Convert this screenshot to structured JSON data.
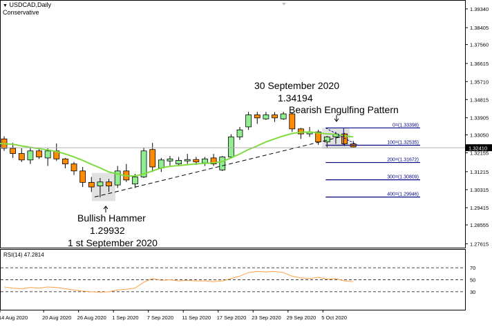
{
  "header": {
    "symbol": "USDCAD,Daily",
    "mode": "Conservative"
  },
  "price_axis_ticks": [
    "1.39340",
    "1.38405",
    "1.37560",
    "1.36615",
    "1.35710",
    "1.34815",
    "1.33905",
    "1.33050",
    "1.32155",
    "1.31215",
    "1.30315",
    "1.29415",
    "1.28555",
    "1.27615"
  ],
  "current_price": "1.32410",
  "x_labels": [
    "14 Aug 2020",
    "20 Aug 2020",
    "26 Aug 2020",
    "1 Sep 2020",
    "7 Sep 2020",
    "11 Sep 2020",
    "17 Sep 2020",
    "23 Sep 2020",
    "29 Sep 2020",
    "5 Oct 2020"
  ],
  "annotations": {
    "top_line1": "30 September 2020",
    "top_line2": "1.34194",
    "top_line3": "Bearish Engulfing Pattern",
    "bottom_line1": "Bullish Hammer",
    "bottom_line2": "1.29932",
    "bottom_line3": "1 st September 2020"
  },
  "fib_labels": [
    "0=(1.33398)",
    "100=(1.32535)",
    "200=(1.31672)",
    "300=(1.30809)",
    "400=(1.29946)"
  ],
  "rsi": {
    "label": "RSI(14) 47.2814",
    "levels": [
      "70",
      "50",
      "30"
    ]
  },
  "colors": {
    "bull": "#90ee90",
    "bear": "#ff8c00",
    "ma": "#7fdc3c",
    "rsi": "#ffa040",
    "fib": "#000080",
    "highlight": "#c8c8c8"
  },
  "chart_data": {
    "type": "candlestick",
    "price_range": [
      1.2742,
      1.3975
    ],
    "candles": [
      {
        "o": 1.3285,
        "h": 1.3298,
        "l": 1.3225,
        "c": 1.3238
      },
      {
        "o": 1.3238,
        "h": 1.3265,
        "l": 1.319,
        "c": 1.3212
      },
      {
        "o": 1.3212,
        "h": 1.3238,
        "l": 1.317,
        "c": 1.318
      },
      {
        "o": 1.318,
        "h": 1.3245,
        "l": 1.316,
        "c": 1.3225
      },
      {
        "o": 1.3225,
        "h": 1.324,
        "l": 1.3185,
        "c": 1.3195
      },
      {
        "o": 1.319,
        "h": 1.3238,
        "l": 1.315,
        "c": 1.3225
      },
      {
        "o": 1.3225,
        "h": 1.3262,
        "l": 1.3175,
        "c": 1.3185
      },
      {
        "o": 1.3185,
        "h": 1.319,
        "l": 1.3138,
        "c": 1.316
      },
      {
        "o": 1.316,
        "h": 1.317,
        "l": 1.3105,
        "c": 1.3125
      },
      {
        "o": 1.3125,
        "h": 1.3145,
        "l": 1.3045,
        "c": 1.3068
      },
      {
        "o": 1.3068,
        "h": 1.3095,
        "l": 1.302,
        "c": 1.3045
      },
      {
        "o": 1.305,
        "h": 1.309,
        "l": 1.2993,
        "c": 1.307
      },
      {
        "o": 1.307,
        "h": 1.3085,
        "l": 1.302,
        "c": 1.305
      },
      {
        "o": 1.3055,
        "h": 1.315,
        "l": 1.304,
        "c": 1.3125
      },
      {
        "o": 1.3125,
        "h": 1.316,
        "l": 1.307,
        "c": 1.308
      },
      {
        "o": 1.306,
        "h": 1.311,
        "l": 1.304,
        "c": 1.3095
      },
      {
        "o": 1.3095,
        "h": 1.324,
        "l": 1.309,
        "c": 1.3225
      },
      {
        "o": 1.3232,
        "h": 1.3265,
        "l": 1.312,
        "c": 1.3145
      },
      {
        "o": 1.314,
        "h": 1.319,
        "l": 1.312,
        "c": 1.318
      },
      {
        "o": 1.3175,
        "h": 1.32,
        "l": 1.315,
        "c": 1.3185
      },
      {
        "o": 1.316,
        "h": 1.3195,
        "l": 1.315,
        "c": 1.3178
      },
      {
        "o": 1.3175,
        "h": 1.321,
        "l": 1.316,
        "c": 1.3182
      },
      {
        "o": 1.3182,
        "h": 1.3195,
        "l": 1.3155,
        "c": 1.317
      },
      {
        "o": 1.3165,
        "h": 1.3195,
        "l": 1.315,
        "c": 1.3185
      },
      {
        "o": 1.319,
        "h": 1.321,
        "l": 1.315,
        "c": 1.316
      },
      {
        "o": 1.313,
        "h": 1.32,
        "l": 1.3125,
        "c": 1.3195
      },
      {
        "o": 1.3195,
        "h": 1.3308,
        "l": 1.319,
        "c": 1.3295
      },
      {
        "o": 1.3295,
        "h": 1.3345,
        "l": 1.328,
        "c": 1.333
      },
      {
        "o": 1.3345,
        "h": 1.342,
        "l": 1.333,
        "c": 1.3405
      },
      {
        "o": 1.3405,
        "h": 1.342,
        "l": 1.336,
        "c": 1.339
      },
      {
        "o": 1.3385,
        "h": 1.342,
        "l": 1.338,
        "c": 1.3405
      },
      {
        "o": 1.3405,
        "h": 1.3419,
        "l": 1.337,
        "c": 1.339
      },
      {
        "o": 1.3385,
        "h": 1.342,
        "l": 1.338,
        "c": 1.341
      },
      {
        "o": 1.341,
        "h": 1.3419,
        "l": 1.332,
        "c": 1.3335
      },
      {
        "o": 1.3335,
        "h": 1.334,
        "l": 1.3285,
        "c": 1.331
      },
      {
        "o": 1.331,
        "h": 1.3345,
        "l": 1.3295,
        "c": 1.332
      },
      {
        "o": 1.332,
        "h": 1.333,
        "l": 1.3255,
        "c": 1.327
      },
      {
        "o": 1.327,
        "h": 1.33,
        "l": 1.324,
        "c": 1.3295
      },
      {
        "o": 1.3295,
        "h": 1.332,
        "l": 1.326,
        "c": 1.331
      },
      {
        "o": 1.331,
        "h": 1.3315,
        "l": 1.325,
        "c": 1.326
      },
      {
        "o": 1.326,
        "h": 1.3275,
        "l": 1.3242,
        "c": 1.3245
      }
    ],
    "moving_average": [
      1.3262,
      1.3258,
      1.325,
      1.3243,
      1.3236,
      1.323,
      1.3222,
      1.321,
      1.3195,
      1.3178,
      1.3158,
      1.314,
      1.312,
      1.311,
      1.31,
      1.31,
      1.311,
      1.3125,
      1.314,
      1.3148,
      1.3152,
      1.3156,
      1.316,
      1.3163,
      1.3165,
      1.3172,
      1.319,
      1.321,
      1.3232,
      1.325,
      1.327,
      1.3285,
      1.33,
      1.3312,
      1.3318,
      1.332,
      1.3315,
      1.331,
      1.3308,
      1.33,
      1.3295
    ],
    "fib_levels": [
      1.33398,
      1.32535,
      1.31672,
      1.30809,
      1.29946
    ],
    "rsi_range": [
      0,
      100
    ],
    "rsi_values": [
      38,
      36,
      35,
      37,
      36,
      38,
      37,
      35,
      33,
      31,
      30,
      29,
      30,
      33,
      34,
      36,
      46,
      52,
      49,
      50,
      48,
      49,
      48,
      48,
      47,
      48,
      52,
      56,
      62,
      64,
      63,
      64,
      62,
      56,
      53,
      52,
      54,
      51,
      52,
      48,
      47
    ]
  }
}
